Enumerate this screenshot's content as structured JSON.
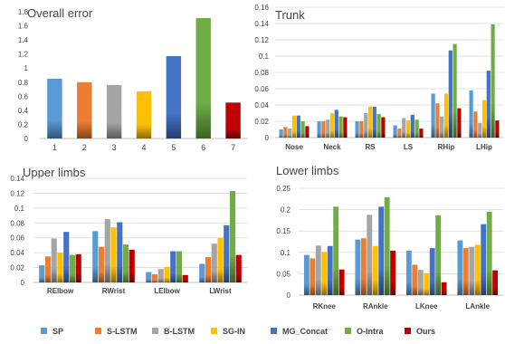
{
  "colors": {
    "SP": "#5B9BD5",
    "S-LSTM": "#ED7D31",
    "B-LSTM": "#A5A5A5",
    "SG-IN": "#FFC000",
    "MG_Concat": "#4472C4",
    "O-Intra": "#70AD47",
    "Ours": "#C00000"
  },
  "legend": {
    "position": "bottom",
    "entries": [
      "SP",
      "S-LSTM",
      "B-LSTM",
      "SG-IN",
      "MG_Concat",
      "O-Intra",
      "Ours"
    ]
  },
  "chart_data": [
    {
      "type": "bar",
      "title": "Overall error",
      "categories": [
        "1",
        "2",
        "3",
        "4",
        "5",
        "6",
        "7"
      ],
      "values": [
        0.85,
        0.8,
        0.76,
        0.67,
        1.17,
        1.71,
        0.51
      ],
      "ylim": [
        0,
        1.8
      ],
      "yticks": [
        "0",
        "0.2",
        "0.4",
        "0.6",
        "0.8",
        "1",
        "1.2",
        "1.4",
        "1.6",
        "1.8"
      ],
      "grid": false
    },
    {
      "type": "bar",
      "title": "Trunk",
      "categories": [
        "Nose",
        "Neck",
        "RS",
        "LS",
        "RHip",
        "LHip"
      ],
      "series": [
        {
          "name": "SP",
          "values": [
            0.01,
            0.02,
            0.02,
            0.015,
            0.054,
            0.058
          ]
        },
        {
          "name": "S-LSTM",
          "values": [
            0.013,
            0.02,
            0.02,
            0.011,
            0.042,
            0.032
          ]
        },
        {
          "name": "B-LSTM",
          "values": [
            0.011,
            0.022,
            0.03,
            0.024,
            0.026,
            0.018
          ]
        },
        {
          "name": "SG-IN",
          "values": [
            0.027,
            0.03,
            0.038,
            0.021,
            0.054,
            0.046
          ]
        },
        {
          "name": "MG_Concat",
          "values": [
            0.027,
            0.034,
            0.038,
            0.028,
            0.107,
            0.082
          ]
        },
        {
          "name": "O-Intra",
          "values": [
            0.02,
            0.026,
            0.029,
            0.022,
            0.115,
            0.139
          ]
        },
        {
          "name": "Ours",
          "values": [
            0.014,
            0.025,
            0.025,
            0.011,
            0.036,
            0.021
          ]
        }
      ],
      "ylim": [
        0,
        0.16
      ],
      "yticks": [
        "0",
        "0.02",
        "0.04",
        "0.06",
        "0.08",
        "0.1",
        "0.12",
        "0.14",
        "0.16"
      ],
      "grid": true
    },
    {
      "type": "bar",
      "title": "Upper limbs",
      "categories": [
        "RElbow",
        "RWrist",
        "LElbow",
        "LWrist"
      ],
      "series": [
        {
          "name": "SP",
          "values": [
            0.023,
            0.069,
            0.014,
            0.025
          ]
        },
        {
          "name": "S-LSTM",
          "values": [
            0.035,
            0.048,
            0.011,
            0.034
          ]
        },
        {
          "name": "B-LSTM",
          "values": [
            0.059,
            0.085,
            0.018,
            0.052
          ]
        },
        {
          "name": "SG-IN",
          "values": [
            0.04,
            0.074,
            0.021,
            0.06
          ]
        },
        {
          "name": "MG_Concat",
          "values": [
            0.068,
            0.081,
            0.042,
            0.077
          ]
        },
        {
          "name": "O-Intra",
          "values": [
            0.037,
            0.051,
            0.042,
            0.123
          ]
        },
        {
          "name": "Ours",
          "values": [
            0.038,
            0.044,
            0.01,
            0.037
          ]
        }
      ],
      "ylim": [
        0,
        0.14
      ],
      "yticks": [
        "0",
        "0.02",
        "0.04",
        "0.06",
        "0.08",
        "0.1",
        "0.12",
        "0.14"
      ],
      "grid": true
    },
    {
      "type": "bar",
      "title": "Lower limbs",
      "categories": [
        "RKnee",
        "RAnkle",
        "LKnee",
        "LAnkle"
      ],
      "series": [
        {
          "name": "SP",
          "values": [
            0.094,
            0.13,
            0.104,
            0.128
          ]
        },
        {
          "name": "S-LSTM",
          "values": [
            0.086,
            0.133,
            0.071,
            0.11
          ]
        },
        {
          "name": "B-LSTM",
          "values": [
            0.116,
            0.188,
            0.059,
            0.113
          ]
        },
        {
          "name": "SG-IN",
          "values": [
            0.101,
            0.115,
            0.051,
            0.118
          ]
        },
        {
          "name": "MG_Concat",
          "values": [
            0.115,
            0.207,
            0.11,
            0.166
          ]
        },
        {
          "name": "O-Intra",
          "values": [
            0.207,
            0.229,
            0.187,
            0.195
          ]
        },
        {
          "name": "Ours",
          "values": [
            0.06,
            0.104,
            0.03,
            0.058
          ]
        }
      ],
      "ylim": [
        0,
        0.25
      ],
      "yticks": [
        "0",
        "0.05",
        "0.1",
        "0.15",
        "0.2",
        "0.25"
      ],
      "grid": true
    }
  ]
}
